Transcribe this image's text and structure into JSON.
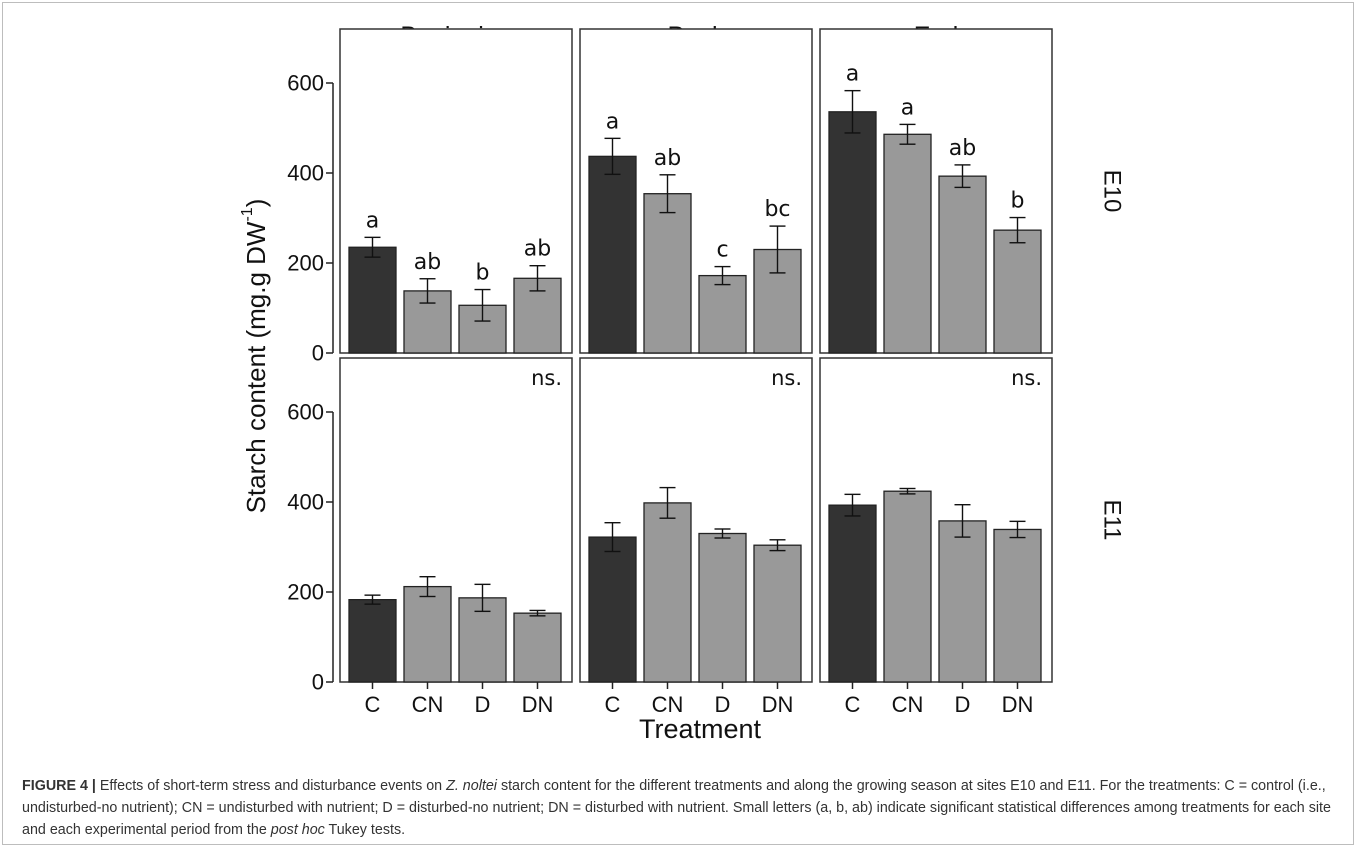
{
  "chart_data": {
    "type": "bar",
    "layout": "facet-grid",
    "categories": [
      "C",
      "CN",
      "D",
      "DN"
    ],
    "columns": [
      "Beginning",
      "Peak",
      "End"
    ],
    "rows": [
      "E10",
      "E11"
    ],
    "xlabel": "Treatment",
    "ylabel_main": "Starch content (mg.g DW",
    "ylabel_sup": "-1",
    "ylabel_close": ")",
    "ylim": [
      0,
      720
    ],
    "yticks": [
      0,
      200,
      400,
      600
    ],
    "bar_colors": {
      "C": "#333333",
      "CN": "#999999",
      "D": "#999999",
      "DN": "#999999"
    },
    "panels": [
      {
        "row": "E10",
        "col": "Beginning",
        "values": [
          235,
          138,
          106,
          166
        ],
        "errors": [
          22,
          27,
          35,
          28
        ],
        "letters": [
          "a",
          "ab",
          "b",
          "ab"
        ],
        "note": ""
      },
      {
        "row": "E10",
        "col": "Peak",
        "values": [
          437,
          354,
          172,
          230
        ],
        "errors": [
          40,
          42,
          20,
          52
        ],
        "letters": [
          "a",
          "ab",
          "c",
          "bc"
        ],
        "note": ""
      },
      {
        "row": "E10",
        "col": "End",
        "values": [
          536,
          486,
          393,
          273
        ],
        "errors": [
          47,
          22,
          25,
          28
        ],
        "letters": [
          "a",
          "a",
          "ab",
          "b"
        ],
        "note": ""
      },
      {
        "row": "E11",
        "col": "Beginning",
        "values": [
          183,
          212,
          187,
          153
        ],
        "errors": [
          10,
          22,
          30,
          6
        ],
        "letters": [
          "",
          "",
          "",
          ""
        ],
        "note": "ns."
      },
      {
        "row": "E11",
        "col": "Peak",
        "values": [
          322,
          398,
          330,
          304
        ],
        "errors": [
          32,
          34,
          10,
          12
        ],
        "letters": [
          "",
          "",
          "",
          ""
        ],
        "note": "ns."
      },
      {
        "row": "E11",
        "col": "End",
        "values": [
          393,
          424,
          358,
          339
        ],
        "errors": [
          24,
          6,
          36,
          18
        ],
        "letters": [
          "",
          "",
          "",
          ""
        ],
        "note": "ns."
      }
    ]
  },
  "caption": {
    "label": "FIGURE 4",
    "separator": " | ",
    "text_1": "Effects of short-term stress and disturbance events on ",
    "species": "Z. noltei",
    "text_2": " starch content for the different treatments and along the growing season at sites E10 and E11. For the treatments: C = control (i.e., undisturbed-no nutrient); CN = undisturbed with nutrient; D = disturbed-no nutrient; DN = disturbed with nutrient. Small letters (a, b, ab) indicate significant statistical differences among treatments for each site and each experimental period from the ",
    "posthoc": "post hoc",
    "text_3": " Tukey tests."
  }
}
